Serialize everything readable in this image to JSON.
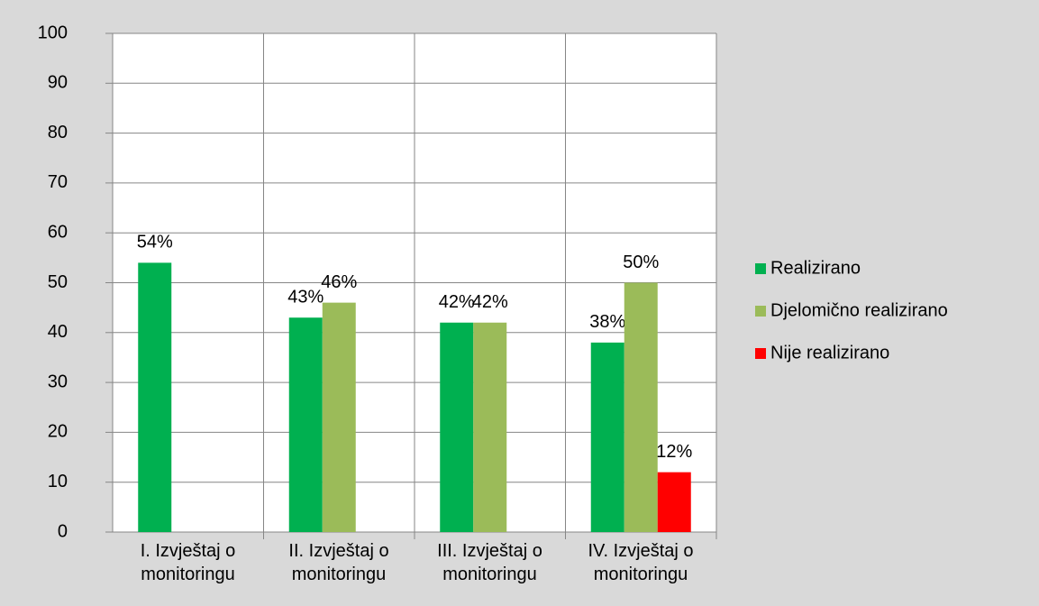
{
  "chart_data": {
    "type": "bar",
    "categories": [
      "I. Izvještaj o monitoringu",
      "II. Izvještaj o monitoringu",
      "III. Izvještaj o monitoringu",
      "IV. Izvještaj o monitoringu"
    ],
    "series": [
      {
        "name": "Realizirano",
        "color": "#00b050",
        "values": [
          54,
          43,
          42,
          38
        ],
        "value_labels": [
          "54%",
          "43%",
          "42%",
          "38%"
        ]
      },
      {
        "name": "Djelomično realizirano",
        "color": "#9bbb59",
        "values": [
          null,
          46,
          42,
          50
        ],
        "value_labels": [
          null,
          "46%",
          "42%",
          "50%"
        ]
      },
      {
        "name": "Nije realizirano",
        "color": "#ff0000",
        "values": [
          null,
          null,
          null,
          12
        ],
        "value_labels": [
          null,
          null,
          null,
          "12%"
        ]
      }
    ],
    "ylim": [
      0,
      100
    ],
    "yticks": [
      0,
      10,
      20,
      30,
      40,
      50,
      60,
      70,
      80,
      90,
      100
    ],
    "grid": true,
    "legend": "right"
  }
}
